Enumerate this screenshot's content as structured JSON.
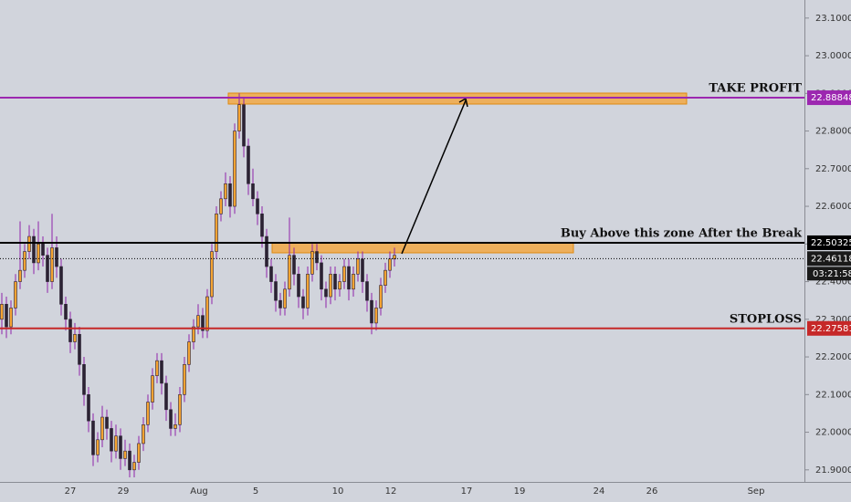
{
  "chart_data": {
    "type": "candlestick",
    "up_color": "#f5a331",
    "down_color": "#2b2233",
    "wick_color": "#8e24aa",
    "ylim": [
      21.868,
      23.148
    ],
    "yticks": [
      {
        "value": 21.9,
        "label": "21.90000"
      },
      {
        "value": 22,
        "label": "22.00000"
      },
      {
        "value": 22.1,
        "label": "22.10000"
      },
      {
        "value": 22.2,
        "label": "22.20000"
      },
      {
        "value": 22.3,
        "label": "22.30000"
      },
      {
        "value": 22.4,
        "label": "22.40000"
      },
      {
        "value": 22.5,
        "label": "22.50000"
      },
      {
        "value": 22.6,
        "label": "22.60000"
      },
      {
        "value": 22.7,
        "label": "22.70000"
      },
      {
        "value": 22.8,
        "label": "22.80000"
      },
      {
        "value": 22.9,
        "label": "22.90000"
      },
      {
        "value": 23,
        "label": "23.00000"
      },
      {
        "value": 23.1,
        "label": "23.10000"
      }
    ],
    "x_labels": [
      "27",
      "29",
      "Aug",
      "5",
      "10",
      "12",
      "17",
      "19",
      "24",
      "26",
      "Sep"
    ],
    "grid": false,
    "levels": [
      {
        "name": "TAKE PROFIT",
        "value": 22.88848,
        "color": "#9c27b0"
      },
      {
        "name": "Buy Above this zone After the Break",
        "value": 22.50325,
        "color": "#000000"
      },
      {
        "name": "STOPLOSS",
        "value": 22.27581,
        "color": "#c62828"
      }
    ],
    "last_price": 22.46118,
    "countdown": "03:21:58",
    "candles": [
      [
        22.3,
        22.37,
        22.26,
        22.34
      ],
      [
        22.34,
        22.36,
        22.25,
        22.28
      ],
      [
        22.28,
        22.35,
        22.26,
        22.33
      ],
      [
        22.33,
        22.42,
        22.31,
        22.4
      ],
      [
        22.4,
        22.56,
        22.38,
        22.43
      ],
      [
        22.43,
        22.5,
        22.41,
        22.48
      ],
      [
        22.48,
        22.55,
        22.46,
        22.52
      ],
      [
        22.52,
        22.54,
        22.42,
        22.45
      ],
      [
        22.45,
        22.56,
        22.43,
        22.5
      ],
      [
        22.5,
        22.52,
        22.44,
        22.47
      ],
      [
        22.47,
        22.49,
        22.37,
        22.4
      ],
      [
        22.4,
        22.58,
        22.38,
        22.49
      ],
      [
        22.49,
        22.52,
        22.41,
        22.44
      ],
      [
        22.44,
        22.46,
        22.31,
        22.34
      ],
      [
        22.34,
        22.36,
        22.27,
        22.3
      ],
      [
        22.3,
        22.32,
        22.21,
        22.24
      ],
      [
        22.24,
        22.29,
        22.22,
        22.26
      ],
      [
        22.26,
        22.28,
        22.15,
        22.18
      ],
      [
        22.18,
        22.2,
        22.07,
        22.1
      ],
      [
        22.1,
        22.12,
        22.0,
        22.03
      ],
      [
        22.03,
        22.05,
        21.91,
        21.94
      ],
      [
        21.94,
        22.0,
        21.92,
        21.98
      ],
      [
        21.98,
        22.07,
        21.96,
        22.04
      ],
      [
        22.04,
        22.06,
        21.98,
        22.01
      ],
      [
        22.01,
        22.03,
        21.92,
        21.95
      ],
      [
        21.95,
        22.02,
        21.93,
        21.99
      ],
      [
        21.99,
        22.01,
        21.9,
        21.93
      ],
      [
        21.93,
        21.98,
        21.91,
        21.95
      ],
      [
        21.95,
        21.97,
        21.88,
        21.9
      ],
      [
        21.9,
        21.94,
        21.88,
        21.92
      ],
      [
        21.92,
        21.99,
        21.9,
        21.97
      ],
      [
        21.97,
        22.04,
        21.95,
        22.02
      ],
      [
        22.02,
        22.1,
        22.0,
        22.08
      ],
      [
        22.08,
        22.17,
        22.06,
        22.15
      ],
      [
        22.15,
        22.21,
        22.13,
        22.19
      ],
      [
        22.19,
        22.21,
        22.1,
        22.13
      ],
      [
        22.13,
        22.15,
        22.03,
        22.06
      ],
      [
        22.06,
        22.08,
        21.99,
        22.01
      ],
      [
        22.01,
        22.05,
        21.99,
        22.02
      ],
      [
        22.02,
        22.12,
        22.0,
        22.1
      ],
      [
        22.1,
        22.2,
        22.08,
        22.18
      ],
      [
        22.18,
        22.26,
        22.16,
        22.24
      ],
      [
        22.24,
        22.3,
        22.22,
        22.28
      ],
      [
        22.28,
        22.34,
        22.26,
        22.31
      ],
      [
        22.31,
        22.33,
        22.25,
        22.27
      ],
      [
        22.27,
        22.38,
        22.25,
        22.36
      ],
      [
        22.36,
        22.5,
        22.34,
        22.48
      ],
      [
        22.48,
        22.6,
        22.46,
        22.58
      ],
      [
        22.58,
        22.64,
        22.56,
        22.62
      ],
      [
        22.62,
        22.69,
        22.6,
        22.66
      ],
      [
        22.66,
        22.68,
        22.57,
        22.6
      ],
      [
        22.6,
        22.82,
        22.58,
        22.8
      ],
      [
        22.8,
        22.9,
        22.78,
        22.87
      ],
      [
        22.87,
        22.89,
        22.73,
        22.76
      ],
      [
        22.76,
        22.78,
        22.63,
        22.66
      ],
      [
        22.66,
        22.7,
        22.6,
        22.62
      ],
      [
        22.62,
        22.64,
        22.55,
        22.58
      ],
      [
        22.58,
        22.6,
        22.49,
        22.52
      ],
      [
        22.52,
        22.54,
        22.41,
        22.44
      ],
      [
        22.44,
        22.46,
        22.37,
        22.4
      ],
      [
        22.4,
        22.42,
        22.32,
        22.35
      ],
      [
        22.35,
        22.37,
        22.31,
        22.33
      ],
      [
        22.33,
        22.4,
        22.31,
        22.38
      ],
      [
        22.38,
        22.57,
        22.36,
        22.47
      ],
      [
        22.47,
        22.49,
        22.39,
        22.42
      ],
      [
        22.42,
        22.44,
        22.33,
        22.36
      ],
      [
        22.36,
        22.38,
        22.3,
        22.33
      ],
      [
        22.33,
        22.44,
        22.31,
        22.42
      ],
      [
        22.42,
        22.5,
        22.4,
        22.48
      ],
      [
        22.48,
        22.5,
        22.43,
        22.45
      ],
      [
        22.45,
        22.47,
        22.35,
        22.38
      ],
      [
        22.38,
        22.4,
        22.33,
        22.36
      ],
      [
        22.36,
        22.44,
        22.34,
        22.42
      ],
      [
        22.42,
        22.44,
        22.35,
        22.38
      ],
      [
        22.38,
        22.42,
        22.36,
        22.4
      ],
      [
        22.4,
        22.46,
        22.38,
        22.44
      ],
      [
        22.44,
        22.46,
        22.35,
        22.38
      ],
      [
        22.38,
        22.44,
        22.36,
        22.42
      ],
      [
        22.42,
        22.48,
        22.4,
        22.46
      ],
      [
        22.46,
        22.48,
        22.37,
        22.4
      ],
      [
        22.4,
        22.42,
        22.32,
        22.35
      ],
      [
        22.35,
        22.37,
        22.26,
        22.29
      ],
      [
        22.29,
        22.35,
        22.27,
        22.33
      ],
      [
        22.33,
        22.41,
        22.31,
        22.39
      ],
      [
        22.39,
        22.45,
        22.37,
        22.43
      ],
      [
        22.43,
        22.48,
        22.41,
        22.46
      ],
      [
        22.46,
        22.49,
        22.44,
        22.47
      ]
    ]
  }
}
